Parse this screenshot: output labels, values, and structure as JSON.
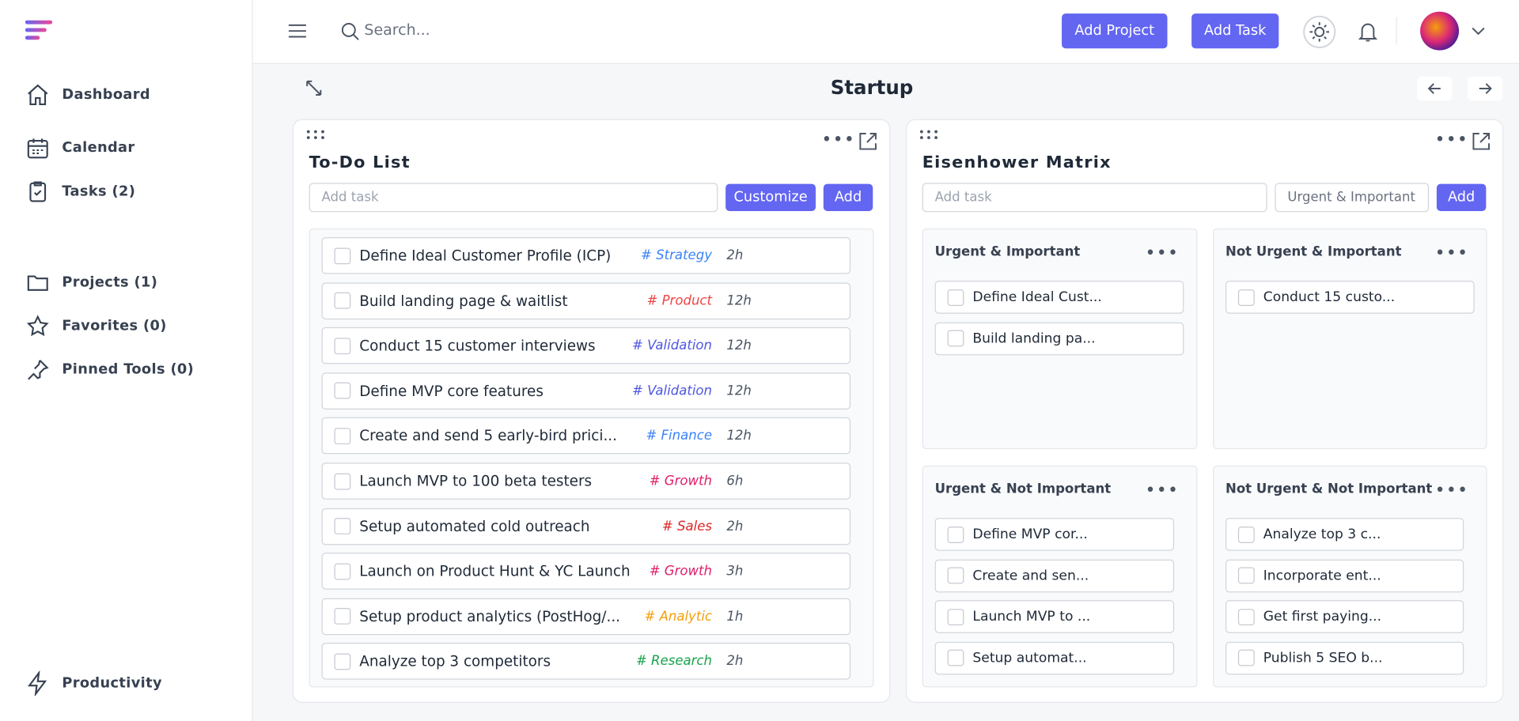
{
  "sidebar": {
    "nav": [
      "Dashboard",
      "Calendar",
      "Tasks (2)"
    ],
    "sections": [
      "Projects (1)",
      "Favorites (0)",
      "Pinned Tools (0)"
    ],
    "footer": "Productivity"
  },
  "header": {
    "search_placeholder": "Search...",
    "buttons": [
      "Add Project",
      "Add Task"
    ]
  },
  "page": {
    "title": "Startup"
  },
  "todo": {
    "title": "To-Do List",
    "input_placeholder": "Add task",
    "buttons": [
      "Customize",
      "Add"
    ],
    "tasks": [
      {
        "title": "Define Ideal Customer Profile (ICP)",
        "tag": "# Strategy",
        "tag_color": "#3b82f6",
        "hours": "2h"
      },
      {
        "title": "Build landing page & waitlist",
        "tag": "# Product",
        "tag_color": "#ef4444",
        "hours": "12h"
      },
      {
        "title": "Conduct 15 customer interviews",
        "tag": "# Validation",
        "tag_color": "#4f57e0",
        "hours": "12h"
      },
      {
        "title": "Define MVP core features",
        "tag": "# Validation",
        "tag_color": "#4f57e0",
        "hours": "12h"
      },
      {
        "title": "Create and send 5 early-bird prici...",
        "tag": "# Finance",
        "tag_color": "#3b82f6",
        "hours": "12h"
      },
      {
        "title": "Launch MVP to 100 beta testers",
        "tag": "# Growth",
        "tag_color": "#e11d68",
        "hours": "6h"
      },
      {
        "title": "Setup automated cold outreach",
        "tag": "# Sales",
        "tag_color": "#dc2626",
        "hours": "2h"
      },
      {
        "title": "Launch on Product Hunt & YC Launch",
        "tag": "# Growth",
        "tag_color": "#e11d68",
        "hours": "3h"
      },
      {
        "title": "Setup product analytics (PostHog/...",
        "tag": "# Analytic",
        "tag_color": "#f59e0b",
        "hours": "1h"
      },
      {
        "title": "Analyze top 3 competitors",
        "tag": "# Research",
        "tag_color": "#16a34a",
        "hours": "2h"
      }
    ]
  },
  "matrix": {
    "title": "Eisenhower Matrix",
    "input_placeholder": "Add task",
    "select": "Urgent & Important",
    "button": "Add",
    "quadrants": [
      {
        "title": "Urgent & Important",
        "tasks": [
          "Define Ideal Cust...",
          "Build landing pa..."
        ]
      },
      {
        "title": "Not Urgent & Important",
        "tasks": [
          "Conduct 15 custo..."
        ]
      },
      {
        "title": "Urgent & Not Important",
        "tasks": [
          "Define MVP cor...",
          "Create and sen...",
          "Launch MVP to ...",
          "Setup automat..."
        ]
      },
      {
        "title": "Not Urgent & Not Important",
        "tasks": [
          "Analyze top 3 c...",
          "Incorporate ent...",
          "Get first paying...",
          "Publish 5 SEO b..."
        ]
      }
    ]
  }
}
